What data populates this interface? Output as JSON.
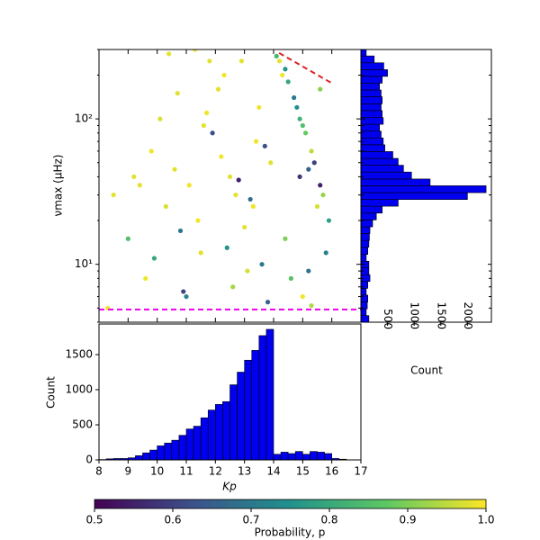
{
  "chart_data": [
    {
      "type": "scatter",
      "ylabel": "νmax (μHz)",
      "xlim": [
        8,
        17
      ],
      "ylim": [
        4,
        300
      ],
      "yscale": "log",
      "xticks": [
        8,
        9,
        10,
        11,
        12,
        13,
        14,
        15,
        16,
        17
      ],
      "yticks": [
        {
          "value": 10,
          "label": "10¹"
        },
        {
          "value": 100,
          "label": "10²"
        }
      ],
      "yminorticks": [
        4,
        5,
        6,
        7,
        8,
        9,
        20,
        30,
        40,
        50,
        60,
        70,
        80,
        90,
        200,
        300
      ],
      "x": [
        9.2,
        9.8,
        10.3,
        10.7,
        11.1,
        11.5,
        11.9,
        12.3,
        12.7,
        13.1,
        13.5,
        13.9,
        8.5,
        9.0,
        9.6,
        10.1,
        10.6,
        11.0,
        11.4,
        11.8,
        12.2,
        12.6,
        13.0,
        13.4,
        13.8,
        10.4,
        11.3,
        12.1,
        12.9,
        13.6,
        11.7,
        12.5,
        13.3,
        10.9,
        9.4,
        14.2,
        14.5,
        14.8,
        15.1,
        15.4,
        15.7,
        14.3,
        14.7,
        15.0,
        15.3,
        15.6,
        15.9,
        14.4,
        14.9,
        15.2,
        15.5,
        15.8,
        14.6,
        15.0,
        15.3,
        14.1,
        14.4,
        14.9,
        15.6,
        15.2,
        12.4,
        13.2,
        11.6,
        12.8,
        13.7,
        9.9,
        10.8,
        8.3
      ],
      "y": [
        40,
        60,
        25,
        150,
        35,
        12,
        80,
        200,
        30,
        9,
        120,
        50,
        30,
        15,
        8,
        100,
        45,
        6,
        20,
        250,
        55,
        7,
        18,
        70,
        5.5,
        280,
        300,
        160,
        250,
        10,
        110,
        40,
        25,
        6.5,
        35,
        250,
        180,
        120,
        80,
        50,
        30,
        200,
        140,
        90,
        60,
        35,
        20,
        15,
        100,
        45,
        25,
        12,
        8,
        6,
        5.2,
        270,
        220,
        40,
        160,
        9,
        13,
        28,
        90,
        38,
        65,
        11,
        17,
        5
      ],
      "color_values": [
        0.98,
        0.99,
        0.97,
        0.98,
        0.99,
        0.98,
        0.62,
        0.99,
        0.98,
        0.97,
        0.99,
        0.98,
        0.98,
        0.85,
        0.99,
        0.97,
        0.98,
        0.72,
        0.99,
        0.98,
        0.99,
        0.93,
        0.98,
        0.99,
        0.65,
        0.98,
        0.99,
        0.98,
        0.98,
        0.7,
        0.99,
        0.98,
        0.99,
        0.6,
        0.98,
        0.98,
        0.8,
        0.75,
        0.88,
        0.6,
        0.92,
        0.99,
        0.7,
        0.85,
        0.95,
        0.55,
        0.78,
        0.9,
        0.82,
        0.66,
        0.97,
        0.72,
        0.86,
        0.99,
        0.94,
        0.83,
        0.76,
        0.58,
        0.91,
        0.69,
        0.75,
        0.68,
        0.98,
        0.55,
        0.62,
        0.8,
        0.7,
        0.99
      ],
      "colormap": "viridis",
      "clim": [
        0.5,
        1.0
      ],
      "colorbar_label": "Probability, p",
      "colorbar_ticks": [
        0.5,
        0.6,
        0.7,
        0.8,
        0.9,
        {
          "value": 1,
          "label": "1.0"
        }
      ],
      "lines": [
        {
          "x": [
            8,
            17
          ],
          "y": [
            4.89,
            4.89
          ],
          "color": "#ee00ee"
        },
        {
          "x": [
            14.19,
            15.98
          ],
          "y": [
            284,
            177
          ],
          "color": "#dd2222"
        }
      ]
    },
    {
      "type": "histogram",
      "orientation": "vertical",
      "xlabel": "Kp",
      "ylabel": "Count",
      "color": "#0000ee",
      "bins": [
        8,
        8.25,
        8.5,
        8.75,
        9,
        9.25,
        9.5,
        9.75,
        10,
        10.25,
        10.5,
        10.75,
        11,
        11.25,
        11.5,
        11.75,
        12,
        12.25,
        12.5,
        12.75,
        13,
        13.25,
        13.5,
        13.75,
        14,
        14.25,
        14.5,
        14.75,
        15,
        15.25,
        15.5,
        15.75,
        16,
        16.25,
        16.5,
        16.75,
        17
      ],
      "counts": [
        5,
        15,
        20,
        20,
        30,
        60,
        100,
        140,
        200,
        240,
        280,
        350,
        440,
        480,
        600,
        710,
        790,
        830,
        1070,
        1250,
        1420,
        1560,
        1770,
        1860,
        80,
        110,
        90,
        120,
        80,
        120,
        110,
        90,
        20,
        10,
        0,
        0
      ],
      "xlim": [
        8,
        17
      ],
      "ylim": [
        0,
        1936
      ],
      "xticks": [
        8,
        9,
        10,
        11,
        12,
        13,
        14,
        15,
        16,
        17
      ],
      "yticks": [
        0,
        500,
        1000,
        1500
      ]
    },
    {
      "type": "histogram",
      "orientation": "horizontal",
      "xlabel": "Count",
      "color": "#0000ee",
      "bins": [
        3.98,
        4.44,
        4.94,
        5.51,
        6.14,
        6.84,
        7.62,
        8.49,
        9.46,
        10.5,
        11.7,
        13.1,
        14.6,
        16.3,
        18.1,
        20.2,
        22.5,
        25.1,
        27.9,
        31.1,
        34.7,
        38.6,
        43.1,
        48.0,
        53.5,
        59.6,
        66.4,
        74.0,
        82.4,
        91.8,
        102,
        114,
        127,
        142,
        158,
        176,
        196,
        218,
        243,
        271,
        302
      ],
      "counts": [
        150,
        100,
        120,
        130,
        100,
        130,
        170,
        150,
        150,
        100,
        130,
        150,
        160,
        170,
        220,
        290,
        400,
        700,
        2000,
        2350,
        1300,
        950,
        800,
        700,
        600,
        450,
        420,
        380,
        350,
        420,
        400,
        380,
        400,
        380,
        350,
        400,
        500,
        430,
        250,
        100
      ],
      "xlim": [
        0,
        2450
      ],
      "ylim": [
        4,
        300
      ],
      "yscale": "log",
      "xticks": [
        500,
        1000,
        1500,
        2000
      ]
    }
  ]
}
